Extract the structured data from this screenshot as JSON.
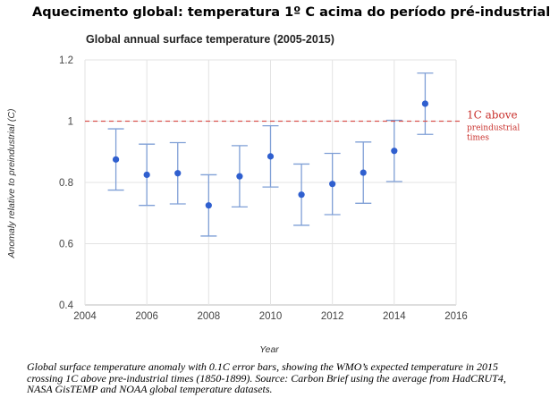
{
  "page": {
    "heading": "Aquecimento global: temperatura 1º C acima do período pré-industrial",
    "caption": "Global surface temperature anomaly with 0.1C error bars, showing the WMO’s expected temperature in 2015 crossing 1C above pre-industrial times (1850-1899). Source: Carbon Brief using the average from HadCRUT4, NASA GisTEMP and NOAA global temperature datasets."
  },
  "chart_data": {
    "type": "scatter",
    "title": "Global annual surface temperature (2005-2015)",
    "xlabel": "Year",
    "ylabel": "Anomaly relative to preindustrial (C)",
    "xlim": [
      2004,
      2016
    ],
    "ylim": [
      0.4,
      1.2
    ],
    "x_ticks": [
      "2004",
      "2006",
      "2008",
      "2010",
      "2012",
      "2014",
      "2016"
    ],
    "y_ticks": [
      "0.4",
      "0.6",
      "0.8",
      "1",
      "1.2"
    ],
    "grid": true,
    "error_bar": 0.1,
    "points": [
      {
        "x": 2005,
        "y": 0.875
      },
      {
        "x": 2006,
        "y": 0.825
      },
      {
        "x": 2007,
        "y": 0.83
      },
      {
        "x": 2008,
        "y": 0.725
      },
      {
        "x": 2009,
        "y": 0.82
      },
      {
        "x": 2010,
        "y": 0.885
      },
      {
        "x": 2011,
        "y": 0.76
      },
      {
        "x": 2012,
        "y": 0.795
      },
      {
        "x": 2013,
        "y": 0.832
      },
      {
        "x": 2014,
        "y": 0.903
      },
      {
        "x": 2015,
        "y": 1.057
      }
    ],
    "reference_line": {
      "value": 1.0,
      "label_lines": [
        "1C above",
        "preindustrial",
        "times"
      ],
      "color": "#d9534f"
    },
    "colors": {
      "point": "#2f5fcf",
      "error_bar": "#7f9fd6",
      "grid": "#e3e3e3",
      "axis": "#bdbdbd"
    }
  }
}
